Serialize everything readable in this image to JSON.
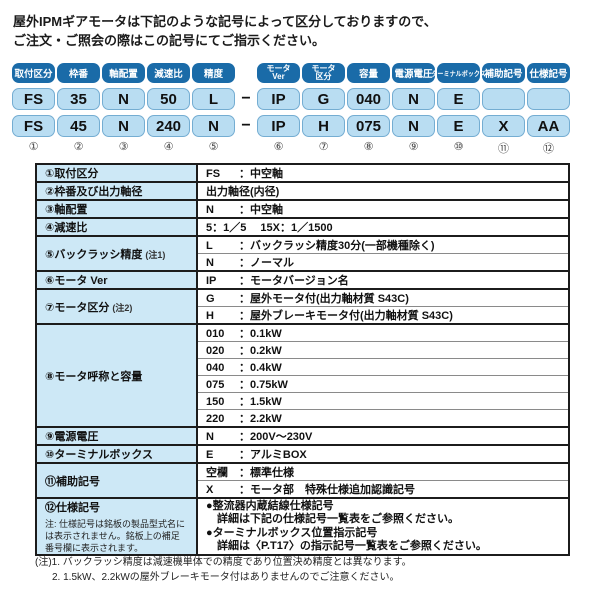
{
  "colors": {
    "header_blue": "#1a6ba8",
    "value_blue": "#b9ddf2",
    "table_label_blue": "#cde8f6"
  },
  "intro": {
    "line1": "屋外IPMギアモータは下記のような記号によって区分しておりますので、",
    "line2": "ご注文・ご照会の際はこの記号にてご指示ください。"
  },
  "diagram": {
    "separator": "−",
    "columns": [
      {
        "header": "取付区分",
        "row1": "FS",
        "row2": "FS",
        "num": "①"
      },
      {
        "header": "枠番",
        "row1": "35",
        "row2": "45",
        "num": "②"
      },
      {
        "header": "軸配置",
        "row1": "N",
        "row2": "N",
        "num": "③"
      },
      {
        "header": "減速比",
        "row1": "50",
        "row2": "240",
        "num": "④"
      },
      {
        "header": "精度",
        "row1": "L",
        "row2": "N",
        "num": "⑤"
      },
      {
        "header": "モータ",
        "header2": "Ver",
        "row1": "IP",
        "row2": "IP",
        "num": "⑥"
      },
      {
        "header": "モータ",
        "header2": "区分",
        "row1": "G",
        "row2": "H",
        "num": "⑦"
      },
      {
        "header": "容量",
        "row1": "040",
        "row2": "075",
        "num": "⑧"
      },
      {
        "header": "電源電圧",
        "row1": "N",
        "row2": "N",
        "num": "⑨"
      },
      {
        "header": "ターミナルボックス",
        "row1": "E",
        "row2": "E",
        "num": "⑩"
      },
      {
        "header": "補助記号",
        "row1": "",
        "row2": "X",
        "num": "⑪"
      },
      {
        "header": "仕様記号",
        "row1": "",
        "row2": "AA",
        "num": "⑫"
      }
    ]
  },
  "spec": {
    "rows": [
      {
        "label": "①取付区分",
        "entries": [
          {
            "code": "FS",
            "desc": "：中空軸"
          }
        ]
      },
      {
        "label": "②枠番及び出力軸径",
        "entries": [
          {
            "code": "出力軸径(内径)",
            "desc": ""
          }
        ]
      },
      {
        "label": "③軸配置",
        "entries": [
          {
            "code": "N",
            "desc": "：中空軸"
          }
        ]
      },
      {
        "label": "④減速比",
        "entries": [
          {
            "code": "5：1／5　 15X：1／1500",
            "desc": ""
          }
        ]
      },
      {
        "label": "⑤バックラッシ精度",
        "note": "(注1)",
        "entries": [
          {
            "code": "L",
            "desc": "：バックラッシ精度30分(一部機種除く)"
          },
          {
            "code": "N",
            "desc": "：ノーマル"
          }
        ]
      },
      {
        "label": "⑥モータ Ver",
        "entries": [
          {
            "code": "IP",
            "desc": "：モータバージョン名"
          }
        ]
      },
      {
        "label": "⑦モータ区分",
        "note": "(注2)",
        "entries": [
          {
            "code": "G",
            "desc": "：屋外モータ付(出力軸材質 S43C)"
          },
          {
            "code": "H",
            "desc": "：屋外ブレーキモータ付(出力軸材質 S43C)"
          }
        ]
      },
      {
        "label": "⑧モータ呼称と容量",
        "entries": [
          {
            "code": "010",
            "desc": "：0.1kW"
          },
          {
            "code": "020",
            "desc": "：0.2kW"
          },
          {
            "code": "040",
            "desc": "：0.4kW"
          },
          {
            "code": "075",
            "desc": "：0.75kW"
          },
          {
            "code": "150",
            "desc": "：1.5kW"
          },
          {
            "code": "220",
            "desc": "：2.2kW"
          }
        ]
      },
      {
        "label": "⑨電源電圧",
        "entries": [
          {
            "code": "N",
            "desc": "：200V～230V"
          }
        ]
      },
      {
        "label": "⑩ターミナルボックス",
        "entries": [
          {
            "code": "E",
            "desc": "：アルミBOX"
          }
        ]
      },
      {
        "label": "⑪補助記号",
        "entries": [
          {
            "code": "空欄",
            "desc": "：標準仕様"
          },
          {
            "code": "X",
            "desc": "：モータ部　特殊仕様追加認識記号"
          }
        ]
      },
      {
        "label": "⑫仕様記号",
        "label_note": "注: 仕様記号は銘板の製品型式名には表示されません。銘板上の補足番号欄に表示されます。",
        "bullets": [
          {
            "title": "●整流器内蔵結線仕様記号",
            "detail": "詳細は下記の仕様記号一覧表をご参照ください。"
          },
          {
            "title": "●ターミナルボックス位置指示記号",
            "detail": "詳細は〈P.T17〉の指示記号一覧表をご参照ください。"
          }
        ]
      }
    ]
  },
  "footnotes": {
    "line1": "(注)1. バックラッシ精度は減速機単体での精度であり位置決め精度とは異なります。",
    "line2": "2. 1.5kW、2.2kWの屋外ブレーキモータ付はありませんのでご注意ください。"
  }
}
